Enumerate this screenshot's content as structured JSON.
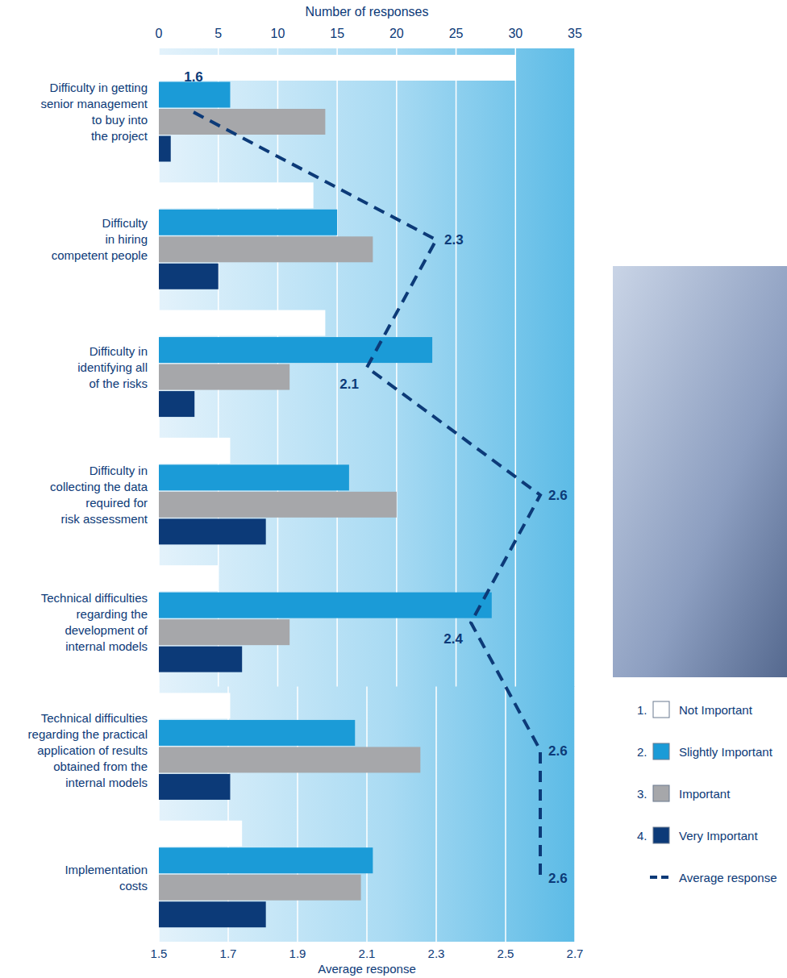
{
  "chart_data": {
    "type": "bar",
    "orientation": "horizontal",
    "y_label": "Number of responses",
    "y2_label": "Average response",
    "categories": [
      "Difficulty in getting\nsenior management\nto buy into\nthe project",
      "Difficulty\nin hiring\ncompetent people",
      "Difficulty in\nidentifying all\nof the risks",
      "Difficulty in\ncollecting the data\nrequired for\nrisk assessment",
      "Technical difficulties\nregarding the\ndevelopment of\ninternal models",
      "Technical difficulties\nregarding the practical\napplication of results\nobtained from the\ninternal models",
      "Implementation\ncosts"
    ],
    "series": [
      {
        "name": "Not Important",
        "key": "1.",
        "color": "#ffffff",
        "values": [
          30,
          13,
          14,
          6,
          5,
          6,
          7
        ]
      },
      {
        "name": "Slightly Important",
        "key": "2.",
        "color": "#1b9bd7",
        "values": [
          6,
          15,
          23,
          16,
          28,
          16.5,
          18
        ]
      },
      {
        "name": "Important",
        "key": "3.",
        "color": "#a6a7aa",
        "values": [
          14,
          18,
          11,
          20,
          11,
          22,
          17
        ]
      },
      {
        "name": "Very Important",
        "key": "4.",
        "color": "#0c3a78",
        "values": [
          1,
          5,
          3,
          9,
          7,
          6,
          9
        ]
      },
      {
        "name": "Average response",
        "type": "line",
        "axis": "y2",
        "line_style": "dashed",
        "color": "#0c3a78",
        "data_labels": true,
        "values": [
          1.6,
          2.3,
          2.1,
          2.6,
          2.4,
          2.6,
          2.6
        ]
      }
    ],
    "ylim": [
      0,
      35
    ],
    "yticks": [
      0,
      5,
      10,
      15,
      20,
      25,
      30,
      35
    ],
    "y2lim": [
      1.5,
      2.7
    ],
    "y2ticks": [
      1.5,
      1.7,
      1.9,
      2.1,
      2.3,
      2.5,
      2.7
    ],
    "grid": true,
    "legend": "lower right"
  }
}
